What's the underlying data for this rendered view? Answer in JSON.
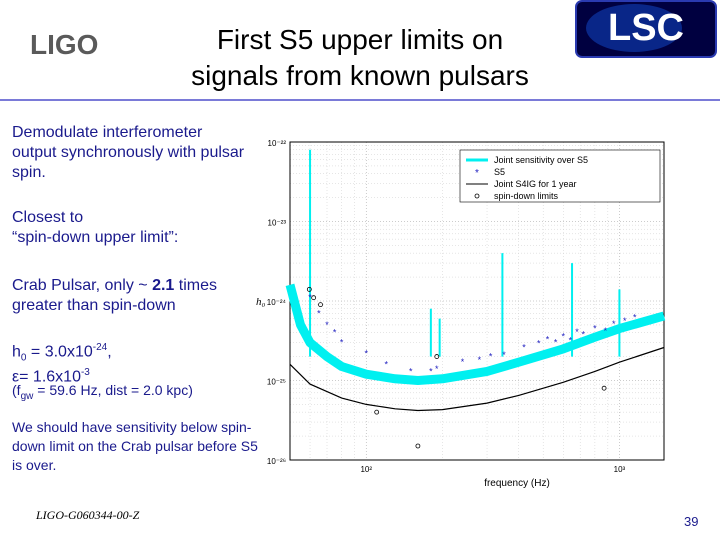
{
  "logos": {
    "left": "LIGO",
    "right": "LSC"
  },
  "title": {
    "line1": "First S5 upper limits on",
    "line2": "signals from known pulsars"
  },
  "body": {
    "p1": "Demodulate interferometer output synchronously with pulsar spin.",
    "p2_line1": "Closest to",
    "p2_line2": "“spin-down upper limit”:",
    "p3_a": "Crab Pulsar, only ~ ",
    "p3_b": "2.1",
    "p3_c": " times greater than spin-down",
    "p4_a": "h",
    "p4_sub": "0",
    "p4_b": " = 3.0x10",
    "p4_sup": "-24",
    "p4_c": ",",
    "p5_a": "ε= 1.6x10",
    "p5_sup": "-3",
    "p6_a": "(f",
    "p6_sub": "gw",
    "p6_b": " = 59.6 Hz, dist = 2.0 kpc)",
    "p7": "We should have sensitivity below spin-down limit on the Crab pulsar before S5 is over."
  },
  "footer": {
    "doc_id": "LIGO-G060344-00-Z",
    "page": "39"
  },
  "colors": {
    "accent": "#1a1a8c",
    "rule": "#7a7ad8",
    "cyan": "#00f0f0",
    "star": "#2020c0"
  },
  "chart_data": {
    "type": "line",
    "xlabel": "frequency (Hz)",
    "ylabel": "h₀",
    "xscale": "log",
    "yscale": "log",
    "xlim": [
      50,
      1500
    ],
    "ylim": [
      1e-26,
      1e-22
    ],
    "x_tick_labels": [
      "10²",
      "10³"
    ],
    "y_tick_labels": [
      "10⁻²²",
      "10⁻²³",
      "10⁻²⁴",
      "10⁻²⁵",
      "10⁻²⁶"
    ],
    "legend": [
      "Joint sensitivity over S5",
      "S5",
      "Joint S4IG for 1 year",
      "spin-down limits"
    ],
    "legend_position": "top-right",
    "grid": true,
    "series": [
      {
        "name": "Joint sensitivity over S5",
        "x": [
          50,
          55,
          60,
          70,
          80,
          100,
          130,
          160,
          200,
          300,
          400,
          600,
          800,
          1000,
          1500
        ],
        "y": [
          1.6e-24,
          5e-25,
          3e-25,
          2e-25,
          1.5e-25,
          1.2e-25,
          1.05e-25,
          1e-25,
          1.05e-25,
          1.3e-25,
          1.7e-25,
          2.5e-25,
          3.5e-25,
          4.5e-25,
          6.5e-25
        ]
      },
      {
        "name": "Joint S4IG for 1 year",
        "x": [
          50,
          60,
          80,
          100,
          130,
          160,
          200,
          300,
          400,
          600,
          800,
          1000,
          1500
        ],
        "y": [
          1.6e-25,
          9e-26,
          6e-26,
          5e-26,
          4.4e-26,
          4.2e-26,
          4.3e-26,
          5.2e-26,
          6.5e-26,
          9.5e-26,
          1.3e-25,
          1.7e-25,
          2.6e-25
        ]
      },
      {
        "name": "S5",
        "x": [
          60,
          65,
          70,
          75,
          80,
          100,
          120,
          150,
          180,
          190,
          240,
          280,
          310,
          350,
          420,
          480,
          520,
          560,
          600,
          640,
          680,
          720,
          800,
          880,
          950,
          1050,
          1150
        ],
        "y": [
          1.1e-24,
          7e-25,
          5e-25,
          4e-25,
          3e-25,
          2.2e-25,
          1.6e-25,
          1.3e-25,
          1.3e-25,
          1.4e-25,
          1.7e-25,
          1.8e-25,
          2e-25,
          2.1e-25,
          2.6e-25,
          2.9e-25,
          3.3e-25,
          3e-25,
          3.6e-25,
          3.2e-25,
          4.1e-25,
          3.8e-25,
          4.5e-25,
          4.2e-25,
          5.1e-25,
          5.6e-25,
          6.2e-25
        ]
      },
      {
        "name": "spin-down limits",
        "x": [
          59.6,
          62,
          66,
          110,
          160,
          190,
          870
        ],
        "y": [
          1.4e-24,
          1.1e-24,
          9e-25,
          4e-26,
          1.5e-26,
          2e-25,
          8e-26
        ]
      }
    ]
  }
}
